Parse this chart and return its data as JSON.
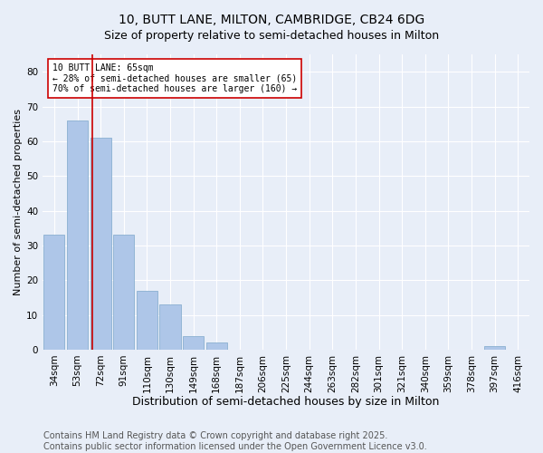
{
  "title": "10, BUTT LANE, MILTON, CAMBRIDGE, CB24 6DG",
  "subtitle": "Size of property relative to semi-detached houses in Milton",
  "xlabel": "Distribution of semi-detached houses by size in Milton",
  "ylabel": "Number of semi-detached properties",
  "bar_labels": [
    "34sqm",
    "53sqm",
    "72sqm",
    "91sqm",
    "110sqm",
    "130sqm",
    "149sqm",
    "168sqm",
    "187sqm",
    "206sqm",
    "225sqm",
    "244sqm",
    "263sqm",
    "282sqm",
    "301sqm",
    "321sqm",
    "340sqm",
    "359sqm",
    "378sqm",
    "397sqm",
    "416sqm"
  ],
  "bar_values": [
    33,
    66,
    61,
    33,
    17,
    13,
    4,
    2,
    0,
    0,
    0,
    0,
    0,
    0,
    0,
    0,
    0,
    0,
    0,
    1,
    0
  ],
  "bar_color": "#aec6e8",
  "bar_edge_color": "#8ab0d0",
  "property_line_color": "#cc0000",
  "annotation_box_color": "#ffffff",
  "annotation_box_edge_color": "#cc0000",
  "annotation_line1": "10 BUTT LANE: 65sqm",
  "annotation_line2": "← 28% of semi-detached houses are smaller (65)",
  "annotation_line3": "70% of semi-detached houses are larger (160) →",
  "ylim": [
    0,
    85
  ],
  "yticks": [
    0,
    10,
    20,
    30,
    40,
    50,
    60,
    70,
    80
  ],
  "background_color": "#e8eef8",
  "plot_bg_color": "#e8eef8",
  "footer_text": "Contains HM Land Registry data © Crown copyright and database right 2025.\nContains public sector information licensed under the Open Government Licence v3.0.",
  "title_fontsize": 10,
  "subtitle_fontsize": 9,
  "xlabel_fontsize": 9,
  "ylabel_fontsize": 8,
  "tick_fontsize": 7.5,
  "footer_fontsize": 7
}
